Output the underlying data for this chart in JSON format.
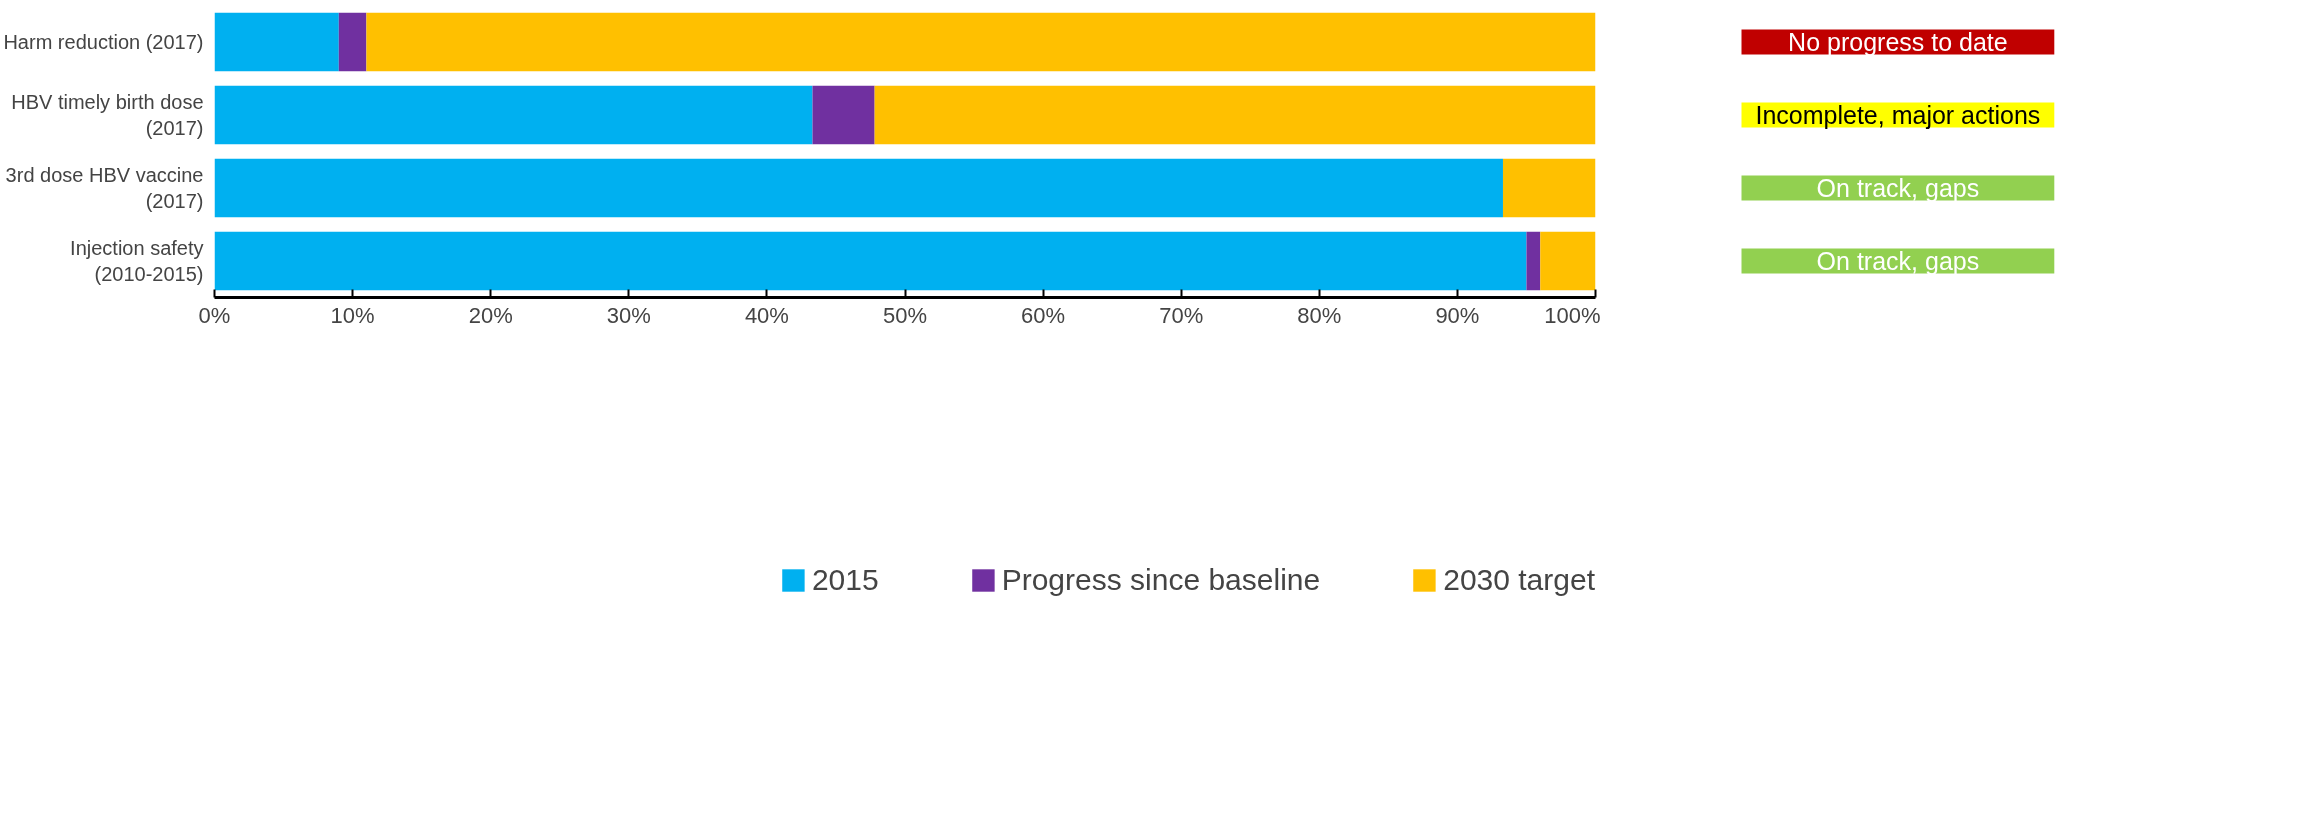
{
  "chart_data": {
    "type": "bar",
    "orientation": "horizontal",
    "stacked": true,
    "categories": [
      "Harm reduction (2017)",
      "HBV timely birth dose (2017)",
      "3rd dose HBV vaccine (2017)",
      "Injection safety (2010-2015)"
    ],
    "series": [
      {
        "name": "2015",
        "color": "#00b0f0",
        "values": [
          9,
          43.3,
          93.3,
          95
        ]
      },
      {
        "name": "Progress since baseline",
        "color": "#7030a0",
        "values": [
          2,
          4.5,
          0,
          1
        ]
      },
      {
        "name": "2030 target",
        "color": "#ffc000",
        "values": [
          89,
          52.2,
          6.7,
          4
        ]
      }
    ],
    "xlim": [
      0,
      100
    ],
    "xticks": [
      {
        "value": 0,
        "label": "0%"
      },
      {
        "value": 10,
        "label": "10%"
      },
      {
        "value": 20,
        "label": "20%"
      },
      {
        "value": 30,
        "label": "30%"
      },
      {
        "value": 40,
        "label": "40%"
      },
      {
        "value": 50,
        "label": "50%"
      },
      {
        "value": 60,
        "label": "60%"
      },
      {
        "value": 70,
        "label": "70%"
      },
      {
        "value": 80,
        "label": "80%"
      },
      {
        "value": 90,
        "label": "90%"
      },
      {
        "value": 100,
        "label": "100%"
      }
    ],
    "annotations": [
      "No progress to date",
      "Incomplete, major actions",
      "On track, gaps",
      "On track, gaps"
    ],
    "legend": "bottom",
    "grid": false
  }
}
